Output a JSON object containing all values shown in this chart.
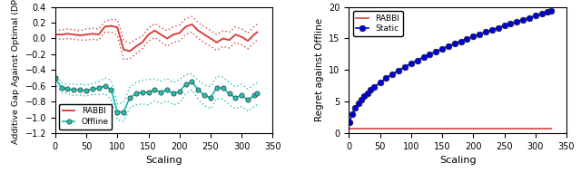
{
  "left": {
    "xlabel": "Scaling",
    "ylabel": "Additive Gap Against Optimal (DP)",
    "xlim": [
      0,
      350
    ],
    "ylim": [
      -1.2,
      0.4
    ],
    "yticks": [
      -1.2,
      -1.0,
      -0.8,
      -0.6,
      -0.4,
      -0.2,
      0.0,
      0.2,
      0.4
    ],
    "xticks": [
      0,
      50,
      100,
      150,
      200,
      250,
      300,
      350
    ],
    "rabbi_color": "#d94040",
    "offline_color": "#20c0b0",
    "offline_marker_edge": "#3a3a3a"
  },
  "right": {
    "xlabel": "Scaling",
    "ylabel": "Regret against Offline",
    "xlim": [
      0,
      350
    ],
    "ylim": [
      0,
      20
    ],
    "yticks": [
      0,
      5,
      10,
      15,
      20
    ],
    "xticks": [
      0,
      50,
      100,
      150,
      200,
      250,
      300,
      350
    ],
    "rabbi_color": "#d94040",
    "static_color": "#0000dd",
    "static_marker_edge": "#222222"
  }
}
